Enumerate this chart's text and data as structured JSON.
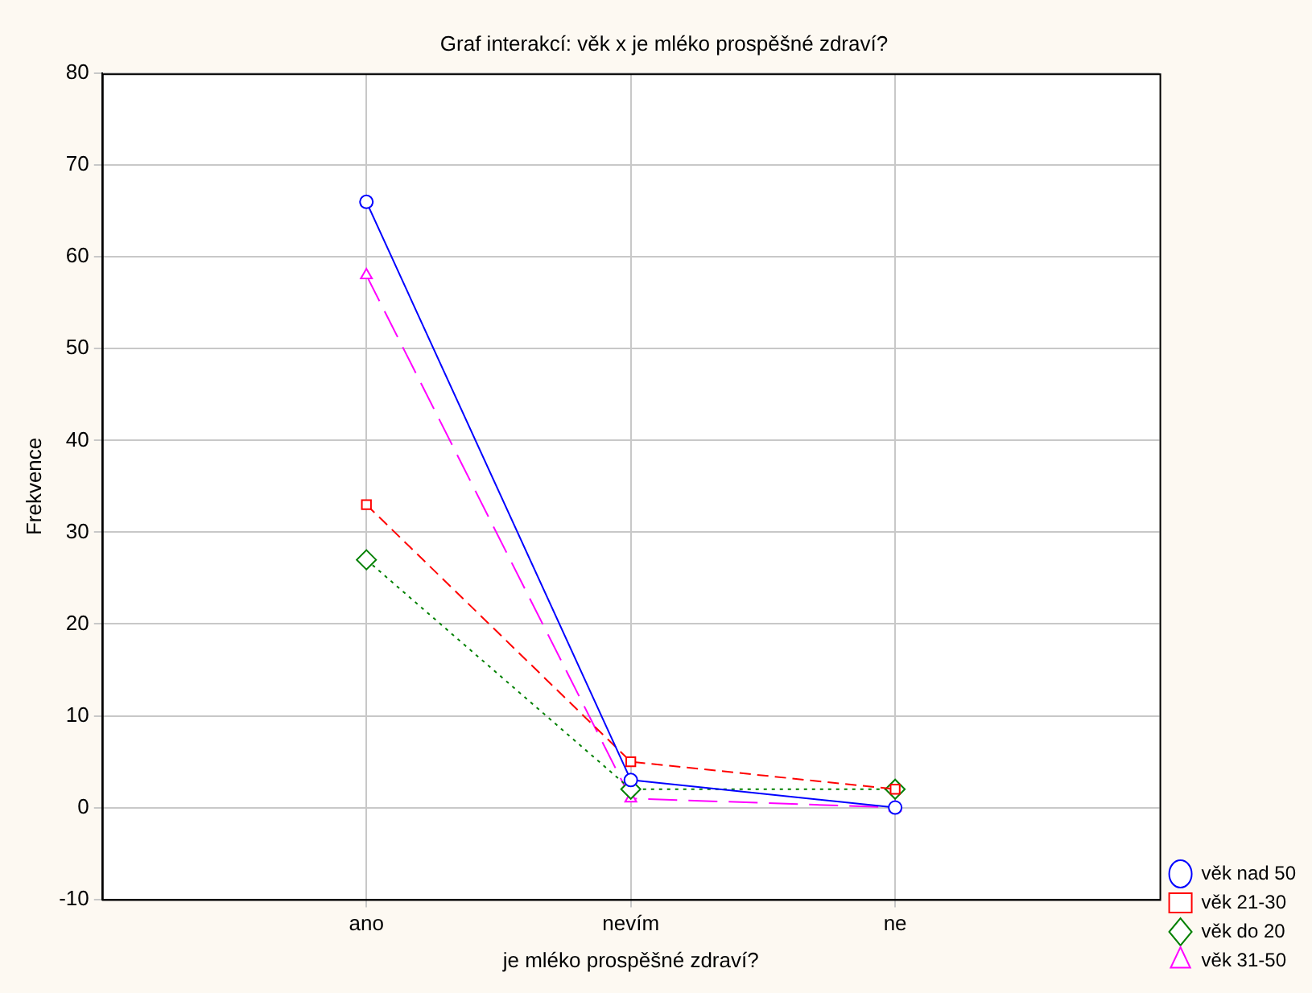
{
  "chart_data": {
    "type": "line",
    "title": "Graf interakcí: věk x je mléko prospěšné zdraví?",
    "xlabel": "je mléko prospěšné zdraví?",
    "ylabel": "Frekvence",
    "categories": [
      "ano",
      "nevím",
      "ne"
    ],
    "series": [
      {
        "name": "věk nad 50",
        "color": "#0000ff",
        "values": [
          66,
          3,
          0
        ],
        "marker": "circle",
        "line_style": "solid"
      },
      {
        "name": "věk 21-30",
        "color": "#ff0000",
        "values": [
          33,
          5,
          2
        ],
        "marker": "square",
        "line_style": "dashed"
      },
      {
        "name": "věk do 20",
        "color": "#008000",
        "values": [
          27,
          2,
          2
        ],
        "marker": "diamond",
        "line_style": "dotted"
      },
      {
        "name": "věk 31-50",
        "color": "#ff00ff",
        "values": [
          58,
          1,
          0
        ],
        "marker": "triangle",
        "line_style": "dashed"
      }
    ],
    "ylim": [
      -10,
      80
    ],
    "yticks": [
      -10,
      0,
      10,
      20,
      30,
      40,
      50,
      60,
      70,
      80
    ],
    "grid": true,
    "legend": "bottom right"
  }
}
